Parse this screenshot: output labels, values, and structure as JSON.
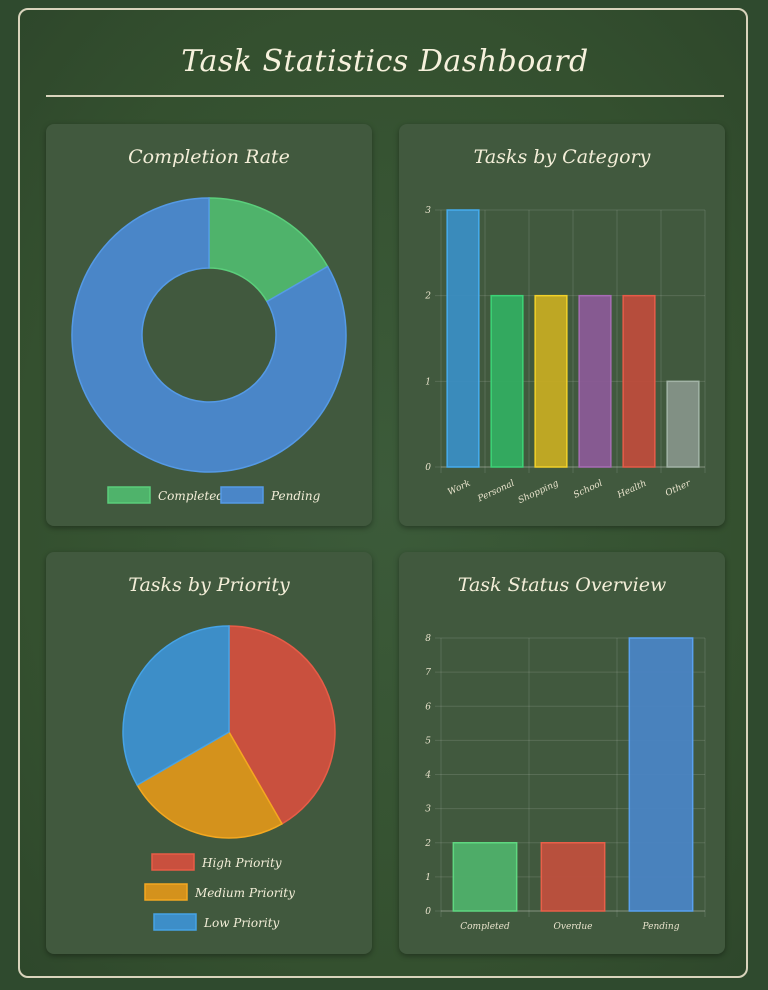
{
  "dashboard": {
    "title": "Task Statistics Dashboard"
  },
  "colors": {
    "completed": "#4fb36b",
    "pending": "#4a86c8",
    "work": "#3a8fc6",
    "personal": "#32b062",
    "shopping": "#c9ae22",
    "school": "#8c5a98",
    "health": "#c04c3c",
    "other": "#87958a",
    "high": "#c9503e",
    "medium": "#d4921c",
    "low": "#3d8ec8",
    "overdue": "#c24f3d"
  },
  "chart_data": [
    {
      "id": "completion",
      "type": "pie",
      "title": "Completion Rate",
      "donut": true,
      "categories": [
        "Completed",
        "Pending"
      ],
      "values": [
        2,
        10
      ],
      "legend_position": "bottom"
    },
    {
      "id": "category",
      "type": "bar",
      "title": "Tasks by Category",
      "categories": [
        "Work",
        "Personal",
        "Shopping",
        "School",
        "Health",
        "Other"
      ],
      "values": [
        3,
        2,
        2,
        2,
        2,
        1
      ],
      "ylim": [
        0,
        3
      ],
      "yticks": [
        0,
        1,
        2,
        3
      ],
      "grid": true
    },
    {
      "id": "priority",
      "type": "pie",
      "title": "Tasks by Priority",
      "categories": [
        "High Priority",
        "Medium Priority",
        "Low Priority"
      ],
      "values": [
        5,
        3,
        4
      ],
      "legend_position": "bottom"
    },
    {
      "id": "status",
      "type": "bar",
      "title": "Task Status Overview",
      "categories": [
        "Completed",
        "Overdue",
        "Pending"
      ],
      "values": [
        2,
        2,
        8
      ],
      "ylim": [
        0,
        8
      ],
      "yticks": [
        0,
        1,
        2,
        3,
        4,
        5,
        6,
        7,
        8
      ],
      "grid": true
    }
  ]
}
